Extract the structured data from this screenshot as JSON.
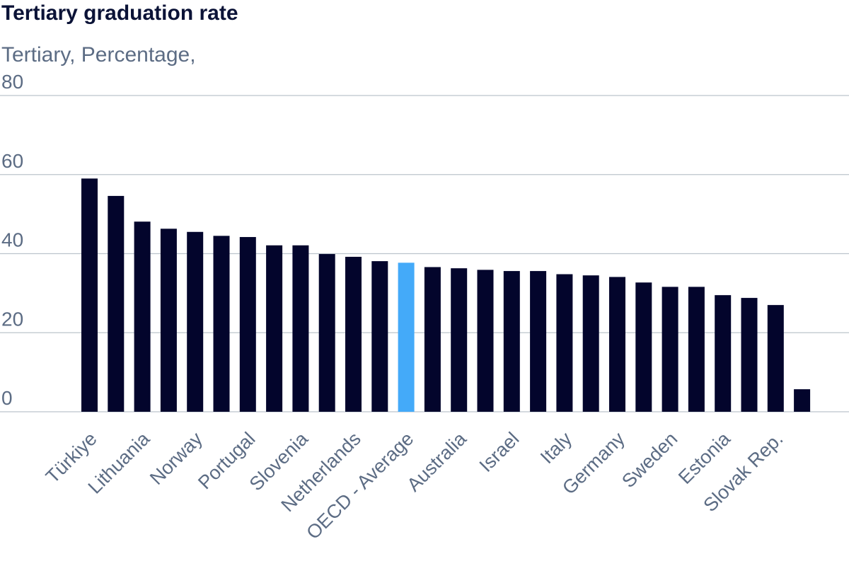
{
  "chart_data": {
    "type": "bar",
    "title": "Tertiary graduation rate",
    "subtitle": "Tertiary, Percentage,",
    "xlabel": "",
    "ylabel": "",
    "ylim": [
      0,
      80
    ],
    "yticks": [
      0,
      20,
      40,
      60,
      80
    ],
    "grid": true,
    "categories": [
      "Türkiye",
      "",
      "Lithuania",
      "",
      "Norway",
      "",
      "Portugal",
      "",
      "Slovenia",
      "",
      "Netherlands",
      "",
      "OECD - Average",
      "",
      "Australia",
      "",
      "Israel",
      "",
      "Italy",
      "",
      "Germany",
      "",
      "Sweden",
      "",
      "Estonia",
      "",
      "Slovak Rep.",
      ""
    ],
    "values": [
      59,
      54.6,
      48.1,
      46.3,
      45.5,
      44.5,
      44.2,
      42.1,
      42.1,
      39.9,
      39.2,
      38.1,
      37.7,
      36.6,
      36.3,
      35.9,
      35.6,
      35.6,
      34.8,
      34.5,
      34.1,
      32.7,
      31.6,
      31.6,
      29.5,
      28.8,
      27.0,
      5.7
    ],
    "highlight_index": 12,
    "colors": {
      "bar": "#03052c",
      "highlight": "#44aaf9",
      "grid": "#bcc4cc",
      "title": "#0b1337",
      "label": "#5c6c84"
    }
  }
}
